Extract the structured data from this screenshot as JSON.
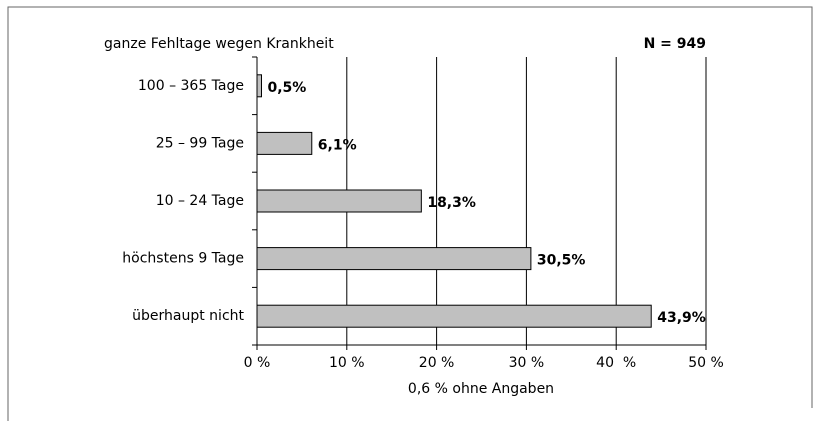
{
  "chart_data": {
    "type": "bar",
    "orientation": "horizontal",
    "title": "ganze Fehltage wegen Krankheit",
    "annotations": [
      "N = 949",
      "0,6 % ohne Angaben"
    ],
    "categories": [
      "100 – 365 Tage",
      "25 – 99 Tage",
      "10 – 24 Tage",
      "höchstens 9 Tage",
      "überhaupt nicht"
    ],
    "values": [
      0.5,
      6.1,
      18.3,
      30.5,
      43.9
    ],
    "value_labels": [
      "0,5%",
      "6,1%",
      "18,3%",
      "30,5%",
      "43,9%"
    ],
    "color": "#c0c0c0",
    "xlim": [
      0,
      50
    ],
    "xticks": [
      {
        "value": 0,
        "label": "0 %"
      },
      {
        "value": 10,
        "label": "10 %"
      },
      {
        "value": 20,
        "label": "20 %"
      },
      {
        "value": 30,
        "label": "30 %"
      },
      {
        "value": 40,
        "label": "40  %"
      },
      {
        "value": 50,
        "label": "50 %"
      }
    ],
    "grid": true
  }
}
